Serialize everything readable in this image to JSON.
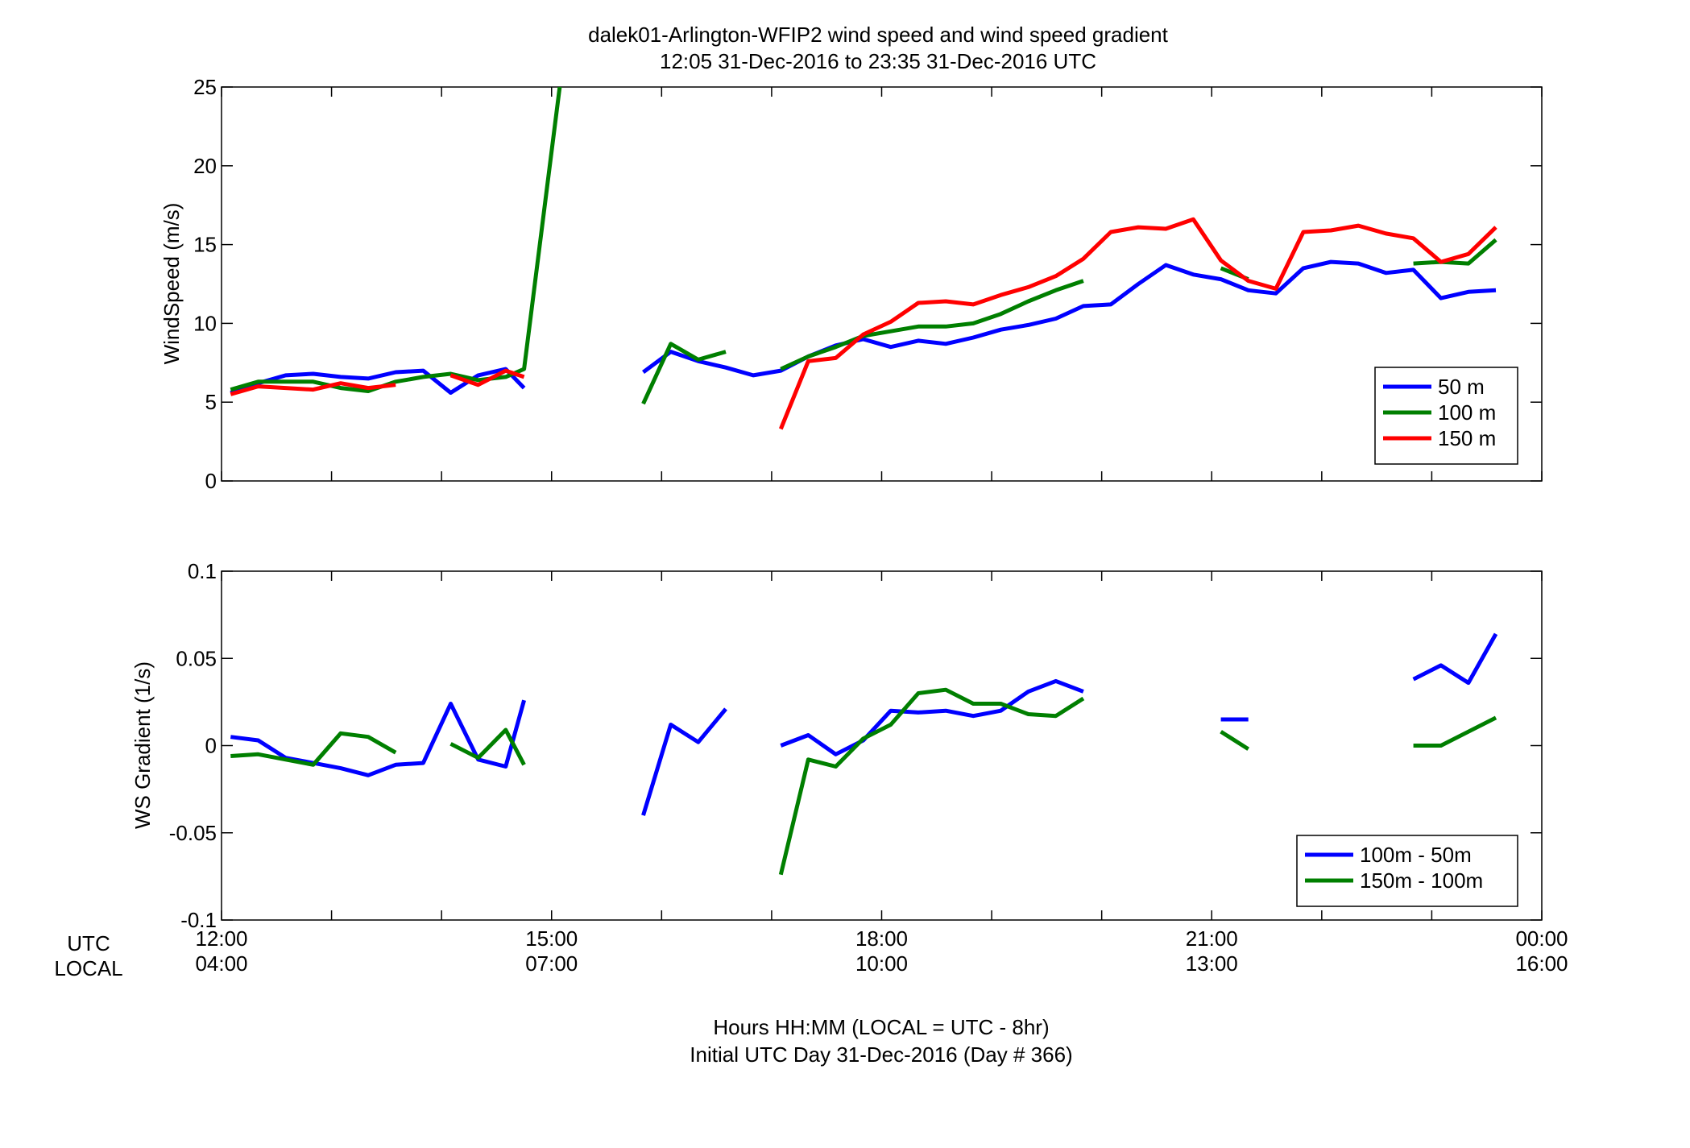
{
  "figure": {
    "title_line1": "dalek01-Arlington-WFIP2  wind speed and wind speed gradient",
    "title_line2": "12:05 31-Dec-2016 to 23:35 31-Dec-2016  UTC",
    "xlabel_line1": "Hours HH:MM  (LOCAL = UTC - 8hr)",
    "xlabel_line2": "Initial UTC Day 31-Dec-2016 (Day # 366)",
    "row_label_utc": "UTC",
    "row_label_local": "LOCAL",
    "xticks_utc": [
      "12:00",
      "15:00",
      "18:00",
      "21:00",
      "00:00"
    ],
    "xticks_local": [
      "04:00",
      "07:00",
      "10:00",
      "13:00",
      "16:00"
    ]
  },
  "chart_data": [
    {
      "type": "line",
      "ylabel": "WindSpeed (m/s)",
      "xlim": [
        12,
        24
      ],
      "ylim": [
        0,
        25
      ],
      "yticks": [
        "0",
        "5",
        "10",
        "15",
        "20",
        "25"
      ],
      "legend_position": "lower-right",
      "series": [
        {
          "name": "50 m",
          "color": "#0000ff",
          "segments": [
            [
              [
                12.083,
                5.6
              ],
              [
                12.333,
                6.2
              ],
              [
                12.583,
                6.7
              ],
              [
                12.833,
                6.8
              ],
              [
                13.083,
                6.6
              ],
              [
                13.333,
                6.5
              ],
              [
                13.583,
                6.9
              ],
              [
                13.833,
                7.0
              ],
              [
                14.083,
                5.6
              ],
              [
                14.333,
                6.7
              ],
              [
                14.583,
                7.1
              ],
              [
                14.75,
                5.9
              ]
            ],
            [
              [
                15.833,
                6.9
              ],
              [
                16.083,
                8.2
              ],
              [
                16.333,
                7.6
              ],
              [
                16.583,
                7.2
              ],
              [
                16.833,
                6.7
              ],
              [
                17.083,
                7.0
              ],
              [
                17.333,
                7.9
              ],
              [
                17.583,
                8.6
              ],
              [
                17.833,
                9.0
              ],
              [
                18.083,
                8.5
              ],
              [
                18.333,
                8.9
              ],
              [
                18.583,
                8.7
              ],
              [
                18.833,
                9.1
              ],
              [
                19.083,
                9.6
              ],
              [
                19.333,
                9.9
              ],
              [
                19.583,
                10.3
              ],
              [
                19.833,
                11.1
              ],
              [
                20.083,
                11.2
              ],
              [
                20.333,
                12.5
              ],
              [
                20.583,
                13.7
              ],
              [
                20.833,
                13.1
              ],
              [
                21.083,
                12.8
              ],
              [
                21.333,
                12.1
              ],
              [
                21.583,
                11.9
              ],
              [
                21.833,
                13.5
              ],
              [
                22.083,
                13.9
              ],
              [
                22.333,
                13.8
              ],
              [
                22.583,
                13.2
              ],
              [
                22.833,
                13.4
              ],
              [
                23.083,
                11.6
              ],
              [
                23.333,
                12.0
              ],
              [
                23.583,
                12.1
              ]
            ]
          ]
        },
        {
          "name": "100 m",
          "color": "#007f00",
          "segments": [
            [
              [
                12.083,
                5.8
              ],
              [
                12.333,
                6.3
              ],
              [
                12.583,
                6.3
              ],
              [
                12.833,
                6.3
              ],
              [
                13.083,
                5.9
              ],
              [
                13.333,
                5.7
              ],
              [
                13.583,
                6.3
              ],
              [
                13.833,
                6.6
              ],
              [
                14.083,
                6.8
              ],
              [
                14.333,
                6.4
              ],
              [
                14.583,
                6.6
              ],
              [
                14.75,
                7.1
              ],
              [
                15.083,
                25.5
              ]
            ],
            [
              [
                15.833,
                4.9
              ],
              [
                16.083,
                8.7
              ],
              [
                16.333,
                7.7
              ],
              [
                16.583,
                8.2
              ]
            ],
            [
              [
                17.083,
                7.1
              ],
              [
                17.333,
                7.9
              ],
              [
                17.583,
                8.5
              ],
              [
                17.833,
                9.2
              ],
              [
                18.083,
                9.5
              ],
              [
                18.333,
                9.8
              ],
              [
                18.583,
                9.8
              ],
              [
                18.833,
                10.0
              ],
              [
                19.083,
                10.6
              ],
              [
                19.333,
                11.4
              ],
              [
                19.583,
                12.1
              ],
              [
                19.833,
                12.7
              ]
            ],
            [
              [
                21.083,
                13.5
              ],
              [
                21.333,
                12.8
              ]
            ],
            [
              [
                22.833,
                13.8
              ],
              [
                23.083,
                13.9
              ],
              [
                23.333,
                13.8
              ],
              [
                23.583,
                15.3
              ]
            ]
          ]
        },
        {
          "name": "150 m",
          "color": "#ff0000",
          "segments": [
            [
              [
                12.083,
                5.5
              ],
              [
                12.333,
                6.0
              ],
              [
                12.583,
                5.9
              ],
              [
                12.833,
                5.8
              ],
              [
                13.083,
                6.2
              ],
              [
                13.333,
                5.9
              ],
              [
                13.583,
                6.1
              ]
            ],
            [
              [
                14.083,
                6.7
              ],
              [
                14.333,
                6.1
              ],
              [
                14.583,
                7.0
              ],
              [
                14.75,
                6.6
              ]
            ],
            [
              [
                17.083,
                3.3
              ],
              [
                17.333,
                7.6
              ],
              [
                17.583,
                7.8
              ],
              [
                17.833,
                9.3
              ],
              [
                18.083,
                10.1
              ],
              [
                18.333,
                11.3
              ],
              [
                18.583,
                11.4
              ],
              [
                18.833,
                11.2
              ],
              [
                19.083,
                11.8
              ],
              [
                19.333,
                12.3
              ],
              [
                19.583,
                13.0
              ],
              [
                19.833,
                14.1
              ],
              [
                20.083,
                15.8
              ],
              [
                20.333,
                16.1
              ],
              [
                20.583,
                16.0
              ],
              [
                20.833,
                16.6
              ],
              [
                21.083,
                14.0
              ],
              [
                21.333,
                12.7
              ],
              [
                21.583,
                12.2
              ],
              [
                21.833,
                15.8
              ],
              [
                22.083,
                15.9
              ],
              [
                22.333,
                16.2
              ],
              [
                22.583,
                15.7
              ],
              [
                22.833,
                15.4
              ],
              [
                23.083,
                13.9
              ],
              [
                23.333,
                14.4
              ],
              [
                23.583,
                16.1
              ]
            ]
          ]
        }
      ]
    },
    {
      "type": "line",
      "ylabel": "WS Gradient (1/s)",
      "xlim": [
        12,
        24
      ],
      "ylim": [
        -0.1,
        0.1
      ],
      "yticks": [
        "-0.1",
        "-0.05",
        "0",
        "0.05",
        "0.1"
      ],
      "legend_position": "lower-right",
      "series": [
        {
          "name": "100m - 50m",
          "color": "#0000ff",
          "segments": [
            [
              [
                12.083,
                0.005
              ],
              [
                12.333,
                0.003
              ],
              [
                12.583,
                -0.007
              ],
              [
                12.833,
                -0.01
              ],
              [
                13.083,
                -0.013
              ],
              [
                13.333,
                -0.017
              ],
              [
                13.583,
                -0.011
              ],
              [
                13.833,
                -0.01
              ],
              [
                14.083,
                0.024
              ],
              [
                14.333,
                -0.008
              ],
              [
                14.583,
                -0.012
              ],
              [
                14.75,
                0.026
              ]
            ],
            [
              [
                15.833,
                -0.04
              ],
              [
                16.083,
                0.012
              ],
              [
                16.333,
                0.002
              ],
              [
                16.583,
                0.021
              ]
            ],
            [
              [
                17.083,
                0.0
              ],
              [
                17.333,
                0.006
              ],
              [
                17.583,
                -0.005
              ],
              [
                17.833,
                0.003
              ],
              [
                18.083,
                0.02
              ],
              [
                18.333,
                0.019
              ],
              [
                18.583,
                0.02
              ],
              [
                18.833,
                0.017
              ],
              [
                19.083,
                0.02
              ],
              [
                19.333,
                0.031
              ],
              [
                19.583,
                0.037
              ],
              [
                19.833,
                0.031
              ]
            ],
            [
              [
                21.083,
                0.015
              ],
              [
                21.333,
                0.015
              ]
            ],
            [
              [
                22.833,
                0.038
              ],
              [
                23.083,
                0.046
              ],
              [
                23.333,
                0.036
              ],
              [
                23.583,
                0.064
              ]
            ]
          ]
        },
        {
          "name": "150m - 100m",
          "color": "#007f00",
          "segments": [
            [
              [
                12.083,
                -0.006
              ],
              [
                12.333,
                -0.005
              ],
              [
                12.583,
                -0.008
              ],
              [
                12.833,
                -0.011
              ],
              [
                13.083,
                0.007
              ],
              [
                13.333,
                0.005
              ],
              [
                13.583,
                -0.004
              ]
            ],
            [
              [
                14.083,
                0.001
              ],
              [
                14.333,
                -0.007
              ],
              [
                14.583,
                0.009
              ],
              [
                14.75,
                -0.011
              ]
            ],
            [
              [
                17.083,
                -0.074
              ],
              [
                17.333,
                -0.008
              ],
              [
                17.583,
                -0.012
              ],
              [
                17.833,
                0.004
              ],
              [
                18.083,
                0.012
              ],
              [
                18.333,
                0.03
              ],
              [
                18.583,
                0.032
              ],
              [
                18.833,
                0.024
              ],
              [
                19.083,
                0.024
              ],
              [
                19.333,
                0.018
              ],
              [
                19.583,
                0.017
              ],
              [
                19.833,
                0.027
              ]
            ],
            [
              [
                21.083,
                0.008
              ],
              [
                21.333,
                -0.002
              ]
            ],
            [
              [
                22.833,
                0.0
              ],
              [
                23.083,
                0.0
              ],
              [
                23.333,
                0.008
              ],
              [
                23.583,
                0.016
              ]
            ]
          ]
        }
      ]
    }
  ]
}
